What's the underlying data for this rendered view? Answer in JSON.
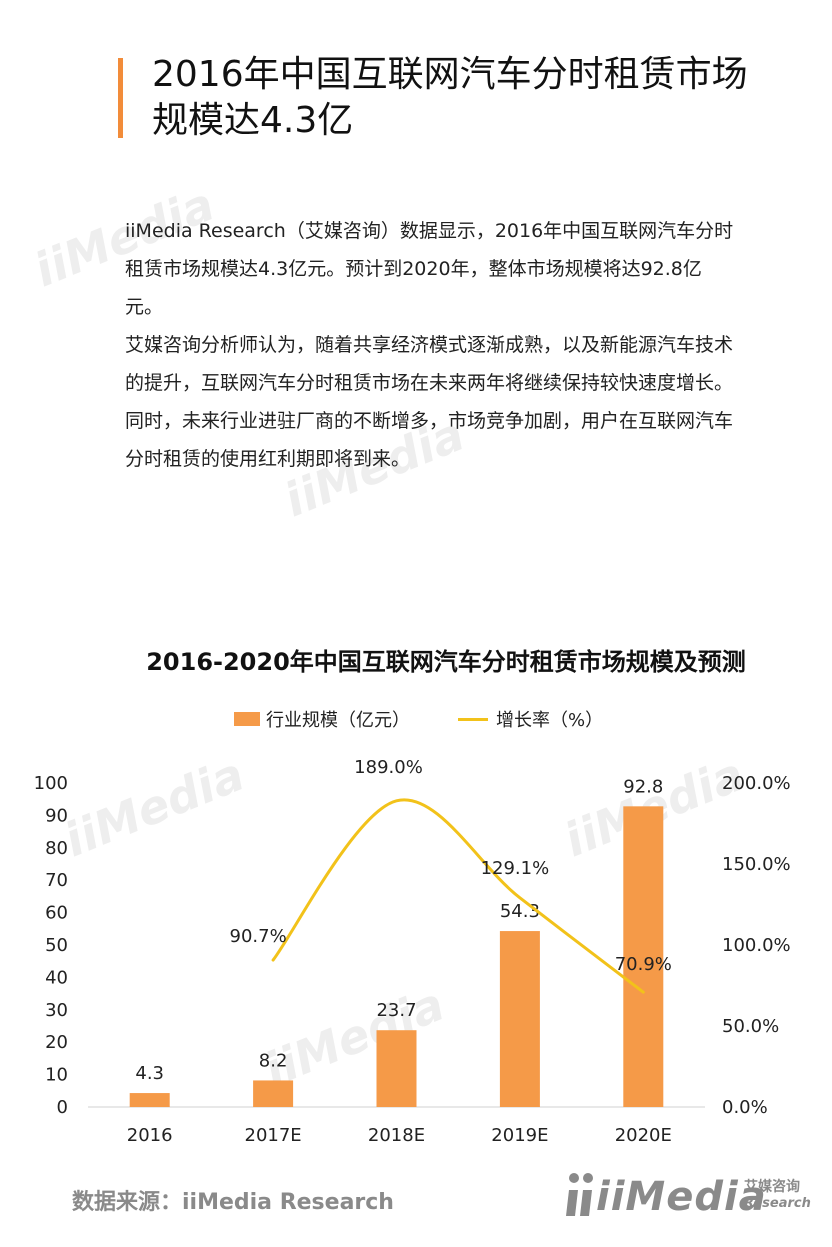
{
  "page": {
    "title": "2016年中国互联网汽车分时租赁市场规模达4.3亿",
    "paragraphs": [
      "iiMedia Research（艾媒咨询）数据显示，2016年中国互联网汽车分时租赁市场规模达4.3亿元。预计到2020年，整体市场规模将达92.8亿元。",
      "艾媒咨询分析师认为，随着共享经济模式逐渐成熟，以及新能源汽车技术的提升，互联网汽车分时租赁市场在未来两年将继续保持较快速度增长。同时，未来行业进驻厂商的不断增多，市场竞争加剧，用户在互联网汽车分时租赁的使用红利期即将到来。"
    ],
    "source": "数据来源：iiMedia Research",
    "logo": {
      "text": "iiMedia",
      "cn": "艾媒咨询",
      "en": "Research"
    },
    "watermark_text": "iiMedia"
  },
  "chart_data": {
    "type": "bar",
    "title": "2016-2020年中国互联网汽车分时租赁市场规模及预测",
    "categories": [
      "2016",
      "2017E",
      "2018E",
      "2019E",
      "2020E"
    ],
    "series": [
      {
        "name": "行业规模（亿元）",
        "type": "bar",
        "axis": "left",
        "values": [
          4.3,
          8.2,
          23.7,
          54.3,
          92.8
        ],
        "labels": [
          "4.3",
          "8.2",
          "23.7",
          "54.3",
          "92.8"
        ],
        "color": "#f59a48"
      },
      {
        "name": "增长率（%）",
        "type": "line",
        "axis": "right",
        "values": [
          null,
          90.7,
          189.0,
          129.1,
          70.9
        ],
        "labels": [
          null,
          "90.7%",
          "189.0%",
          "129.1%",
          "70.9%"
        ],
        "color": "#f2c21a"
      }
    ],
    "left_axis": {
      "min": 0,
      "max": 100,
      "ticks": [
        0,
        10,
        20,
        30,
        40,
        50,
        60,
        70,
        80,
        90,
        100
      ],
      "tick_labels": [
        "0",
        "10",
        "20",
        "30",
        "40",
        "50",
        "60",
        "70",
        "80",
        "90",
        "100"
      ]
    },
    "right_axis": {
      "min": 0,
      "max": 200,
      "ticks": [
        0,
        50,
        100,
        150,
        200
      ],
      "tick_labels": [
        "0.0%",
        "50.0%",
        "100.0%",
        "150.0%",
        "200.0%"
      ]
    },
    "legend_position": "top"
  }
}
